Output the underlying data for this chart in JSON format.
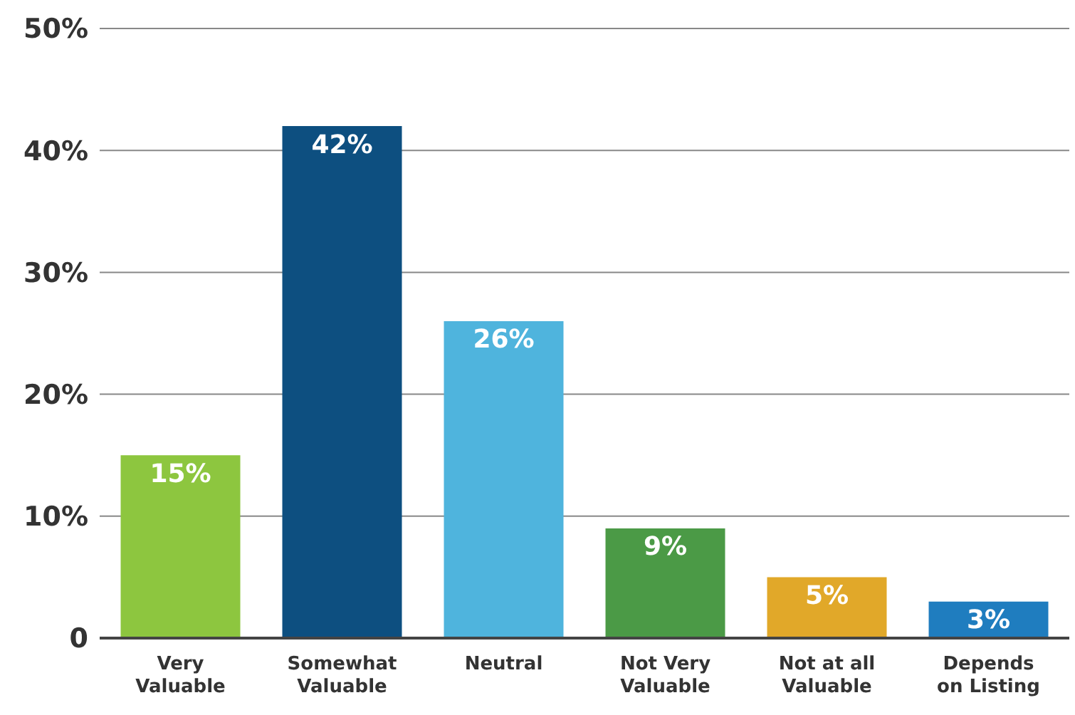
{
  "chart_data": {
    "type": "bar",
    "categories": [
      "Very Valuable",
      "Somewhat Valuable",
      "Neutral",
      "Not Very Valuable",
      "Not at all Valuable",
      "Depends on Listing"
    ],
    "values": [
      15,
      42,
      26,
      9,
      5,
      3
    ],
    "colors": [
      "#8dc63f",
      "#0d4f80",
      "#4fb4dd",
      "#4b9a46",
      "#e1a829",
      "#1f7dbf"
    ],
    "value_labels": [
      "15%",
      "42%",
      "26%",
      "9%",
      "5%",
      "3%"
    ],
    "ylim": [
      0,
      50
    ],
    "yticks": [
      0,
      {
        "value": 10,
        "label": "10%"
      },
      {
        "value": 20,
        "label": "20%"
      },
      {
        "value": 30,
        "label": "30%"
      },
      {
        "value": 40,
        "label": "40%"
      },
      {
        "value": 50,
        "label": "50%"
      }
    ],
    "grid": "y"
  }
}
